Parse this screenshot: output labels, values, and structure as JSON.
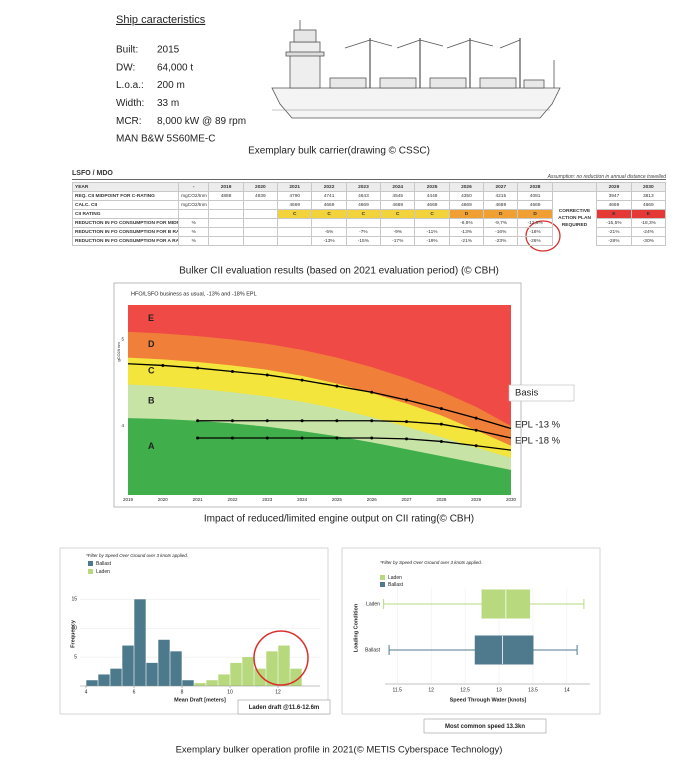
{
  "ship": {
    "title": "Ship caracteristics",
    "specs": [
      {
        "label": "Built:",
        "value": "2015"
      },
      {
        "label": "DW:",
        "value": "64,000 t"
      },
      {
        "label": "L.o.a.:",
        "value": "200 m"
      },
      {
        "label": "Width:",
        "value": "33 m"
      },
      {
        "label": "MCR:",
        "value": "8,000 kW @ 89 rpm"
      }
    ],
    "engine": "MAN B&W 5S60ME-C",
    "caption": "Exemplary bulk carrier(drawing © CSSC)"
  },
  "table": {
    "title": "LSFO / MDO",
    "note": "Assumption: no reduction in annual distance travelled",
    "header": [
      "YEAR",
      "-",
      "2019",
      "2020",
      "2021",
      "2022",
      "2023",
      "2024",
      "2025",
      "2026",
      "2027",
      "2028",
      "2029",
      "2030"
    ],
    "action_note": "CORRECTIVE ACTION PLAN REQUIRED",
    "rows": [
      [
        "REQ. CII MIDPOINT FOR C-RATING",
        "mgCO2/tnm",
        "4888",
        "4839",
        "4790",
        "4741",
        "4643",
        "4545",
        "4448",
        "4350",
        "4215",
        "4081",
        "3947",
        "3813"
      ],
      [
        "CALC. CII",
        "mgCO2/tnm",
        null,
        null,
        "4669",
        "4669",
        "4669",
        "4669",
        "4669",
        "4669",
        "4669",
        "4669",
        "4669",
        "4669"
      ],
      [
        "CII RATING",
        null,
        null,
        null,
        "C",
        "C",
        "C",
        "C",
        "C",
        "D",
        "D",
        "D",
        "E",
        "E"
      ],
      [
        "REDUCTION IN FO CONSUMPTION FOR MIDPOINT C RATING*",
        "%",
        null,
        null,
        null,
        null,
        null,
        null,
        null,
        "-6,8%",
        "-9,7%",
        "-12,6%",
        "-15,5%",
        "-18,3%"
      ],
      [
        "REDUCTION IN FO CONSUMPTION FOR B RATING*",
        "%",
        null,
        null,
        null,
        "-5%",
        "-7%",
        "-9%",
        "-11%",
        "-13%",
        "-16%",
        "-18%",
        "-21%",
        "-24%"
      ],
      [
        "REDUCTION IN FO CONSUMPTION FOR A RATING*",
        "%",
        null,
        null,
        null,
        "-13%",
        "-15%",
        "-17%",
        "-19%",
        "-21%",
        "-23%",
        "-26%",
        "-28%",
        "-30%"
      ]
    ],
    "rating_colors": {
      "C": "#f3d33c",
      "D": "#f0a032",
      "E": "#e53935"
    },
    "caption": "Bulker CII evaluation results (based on 2021 evaluation period) (© CBH)"
  },
  "cii_chart": {
    "type": "band-line",
    "title": "HFO/LSFO business as usual, -13% and -18% EPL",
    "y_label": "gCO2/t nm",
    "x": [
      2019,
      2020,
      2021,
      2022,
      2023,
      2024,
      2025,
      2026,
      2027,
      2028,
      2029,
      2030
    ],
    "xlim": [
      2019,
      2030
    ],
    "xticks": [
      2019,
      2020,
      2021,
      2022,
      2023,
      2024,
      2025,
      2026,
      2027,
      2028,
      2029,
      2030
    ],
    "ylim": [
      3.2,
      5.4
    ],
    "yticks": [
      4,
      5
    ],
    "bands": [
      {
        "name": "E",
        "color": "#ef4a46"
      },
      {
        "name": "D",
        "color": "#f07f3a"
      },
      {
        "name": "C",
        "color": "#f4e53c"
      },
      {
        "name": "B",
        "color": "#c8e3a6"
      },
      {
        "name": "A",
        "color": "#3fae4b"
      }
    ],
    "boundaries": [
      {
        "values": [
          5.09,
          5.07,
          5.04,
          5.0,
          4.95,
          4.88,
          4.79,
          4.68,
          4.55,
          4.4,
          4.22,
          4.0
        ]
      },
      {
        "values": [
          4.79,
          4.77,
          4.74,
          4.7,
          4.65,
          4.58,
          4.49,
          4.38,
          4.26,
          4.12,
          3.95,
          3.77
        ]
      },
      {
        "values": [
          4.48,
          4.46,
          4.43,
          4.39,
          4.34,
          4.28,
          4.2,
          4.1,
          3.99,
          3.87,
          3.75,
          3.63
        ]
      },
      {
        "values": [
          4.09,
          4.08,
          4.06,
          4.03,
          3.99,
          3.94,
          3.88,
          3.81,
          3.73,
          3.65,
          3.57,
          3.49
        ]
      }
    ],
    "series": [
      {
        "name": "Basis",
        "color": "#000000",
        "values": [
          4.72,
          4.7,
          4.67,
          4.63,
          4.59,
          4.53,
          4.46,
          4.39,
          4.3,
          4.2,
          4.09,
          3.97
        ]
      },
      {
        "name": "EPL -13 %",
        "color": "#000000",
        "values": [
          null,
          null,
          4.06,
          4.06,
          4.06,
          4.06,
          4.06,
          4.06,
          4.05,
          4.02,
          3.95,
          3.86
        ]
      },
      {
        "name": "EPL -18 %",
        "color": "#000000",
        "values": [
          null,
          null,
          3.86,
          3.86,
          3.86,
          3.86,
          3.86,
          3.86,
          3.85,
          3.82,
          3.77,
          3.72
        ]
      }
    ],
    "caption": "Impact of reduced/limited engine output on CII rating(© CBH)"
  },
  "operation": {
    "histogram": {
      "type": "histogram",
      "note": "*Filter by Speed Over Ground over 3 knots applied.",
      "y_label": "Frequency",
      "x_label": "Mean Draft [meters]",
      "bins": [
        4,
        4.5,
        5,
        5.5,
        6,
        6.5,
        7,
        7.5,
        8,
        8.5,
        9,
        9.5,
        10,
        10.5,
        11,
        11.5,
        12,
        12.5,
        13
      ],
      "series": [
        {
          "name": "Ballast",
          "color": "#4c7a8c",
          "values": [
            1,
            2,
            3,
            7,
            15,
            4,
            8,
            6,
            1,
            0,
            0,
            0,
            0,
            0,
            0,
            0,
            0,
            0
          ]
        },
        {
          "name": "Laden",
          "color": "#b7d87c",
          "values": [
            0,
            0,
            0,
            0,
            0,
            0,
            0,
            0,
            0,
            0.5,
            1,
            2,
            4,
            5,
            3,
            6,
            7,
            3
          ]
        }
      ],
      "xlim": [
        3.75,
        13.75
      ],
      "xticks": [
        4,
        6,
        8,
        10,
        12
      ],
      "ylim": [
        0,
        18
      ],
      "yticks": [
        5,
        10,
        15
      ],
      "callout": "Laden draft @11.6-12.6m"
    },
    "boxplot": {
      "type": "box",
      "note": "*Filter by Speed Over Ground over 3 knots applied.",
      "y_label": "Loading Condition",
      "x_label": "Speed Through Water [knots]",
      "categories": [
        "Laden",
        "Ballast"
      ],
      "series": [
        {
          "name": "Laden",
          "color": "#b9d97f",
          "min": 11.3,
          "q1": 12.75,
          "median": 13.1,
          "q3": 13.45,
          "max": 14.25
        },
        {
          "name": "Ballast",
          "color": "#4f7a8e",
          "min": 11.38,
          "q1": 12.65,
          "median": 13.05,
          "q3": 13.5,
          "max": 14.15
        }
      ],
      "xlim": [
        11.32,
        14.34
      ],
      "xticks": [
        11.5,
        12,
        12.5,
        13,
        13.5,
        14
      ],
      "callout": "Most common speed 13.3kn"
    },
    "caption": "Exemplary bulker operation profile in 2021(© METIS Cyberspace Technology)"
  }
}
